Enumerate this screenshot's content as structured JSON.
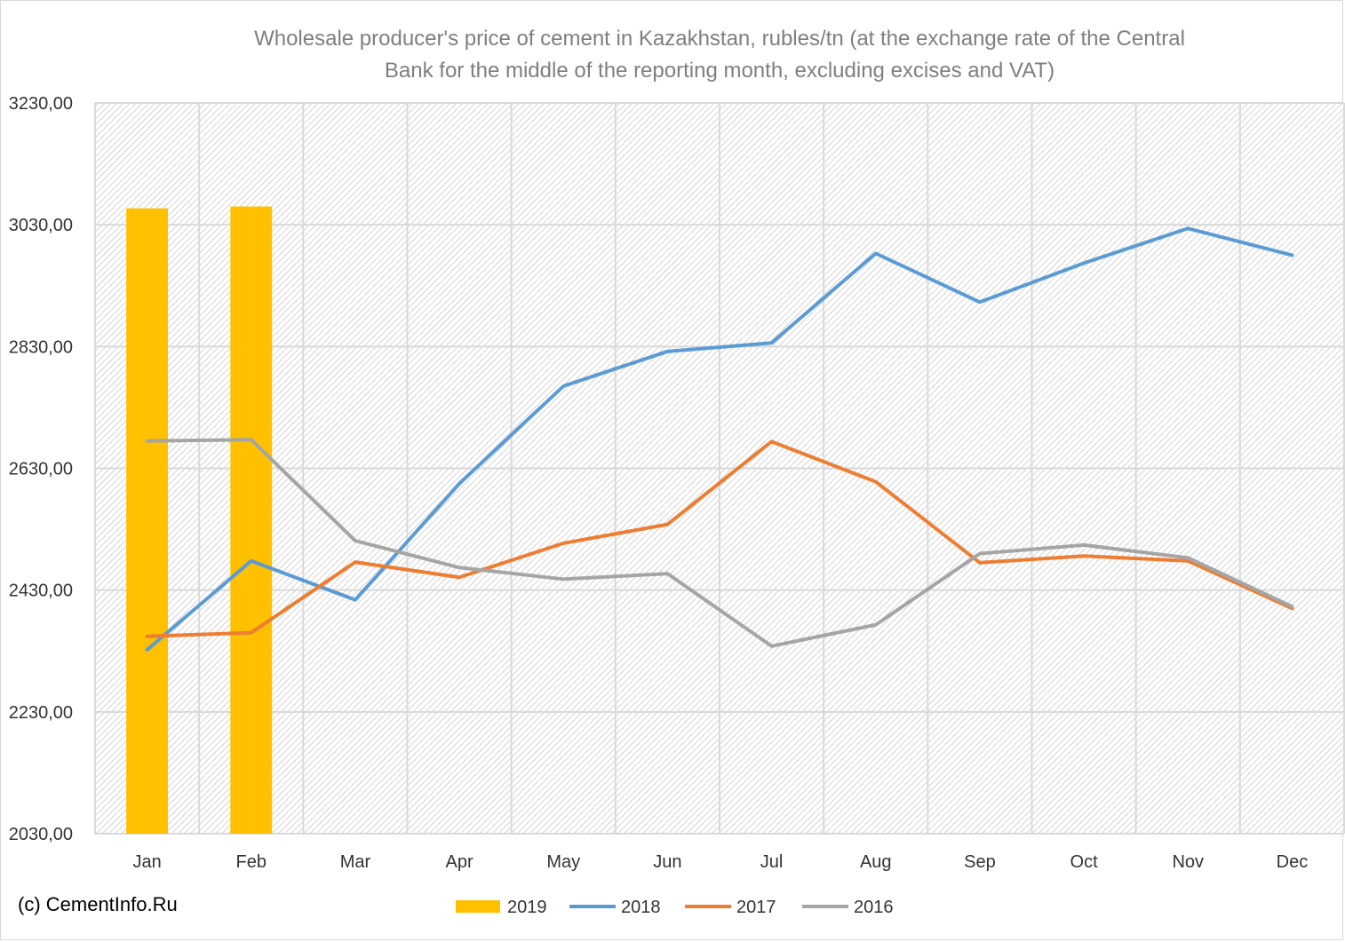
{
  "chart_data": {
    "type": "line",
    "title_line1": "Wholesale producer's price of cement in Kazakhstan, rubles/tn (at the exchange rate of the Central",
    "title_line2": "Bank for the middle of the reporting month, excluding excises and VAT)",
    "categories": [
      "Jan",
      "Feb",
      "Mar",
      "Apr",
      "May",
      "Jun",
      "Jul",
      "Aug",
      "Sep",
      "Oct",
      "Nov",
      "Dec"
    ],
    "y_ticks": [
      "2030,00",
      "2230,00",
      "2430,00",
      "2630,00",
      "2830,00",
      "3030,00",
      "3230,00"
    ],
    "ylim": [
      2030,
      3230
    ],
    "grid": true,
    "legend_position": "bottom",
    "series": [
      {
        "name": "2019",
        "kind": "bar",
        "color": "#FFC000",
        "values": [
          3057,
          3060,
          null,
          null,
          null,
          null,
          null,
          null,
          null,
          null,
          null,
          null
        ]
      },
      {
        "name": "2018",
        "kind": "line",
        "color": "#5B9BD5",
        "values": [
          2332,
          2478,
          2414,
          2605,
          2765,
          2822,
          2836,
          2983,
          2903,
          2967,
          3024,
          2980
        ]
      },
      {
        "name": "2017",
        "kind": "line",
        "color": "#ED7D31",
        "values": [
          2354,
          2360,
          2476,
          2451,
          2507,
          2538,
          2674,
          2608,
          2475,
          2486,
          2478,
          2400
        ]
      },
      {
        "name": "2016",
        "kind": "line",
        "color": "#A5A5A5",
        "values": [
          2675,
          2677,
          2511,
          2467,
          2448,
          2457,
          2338,
          2373,
          2490,
          2504,
          2483,
          2403
        ]
      }
    ]
  },
  "credit": "(c) CementInfo.Ru"
}
